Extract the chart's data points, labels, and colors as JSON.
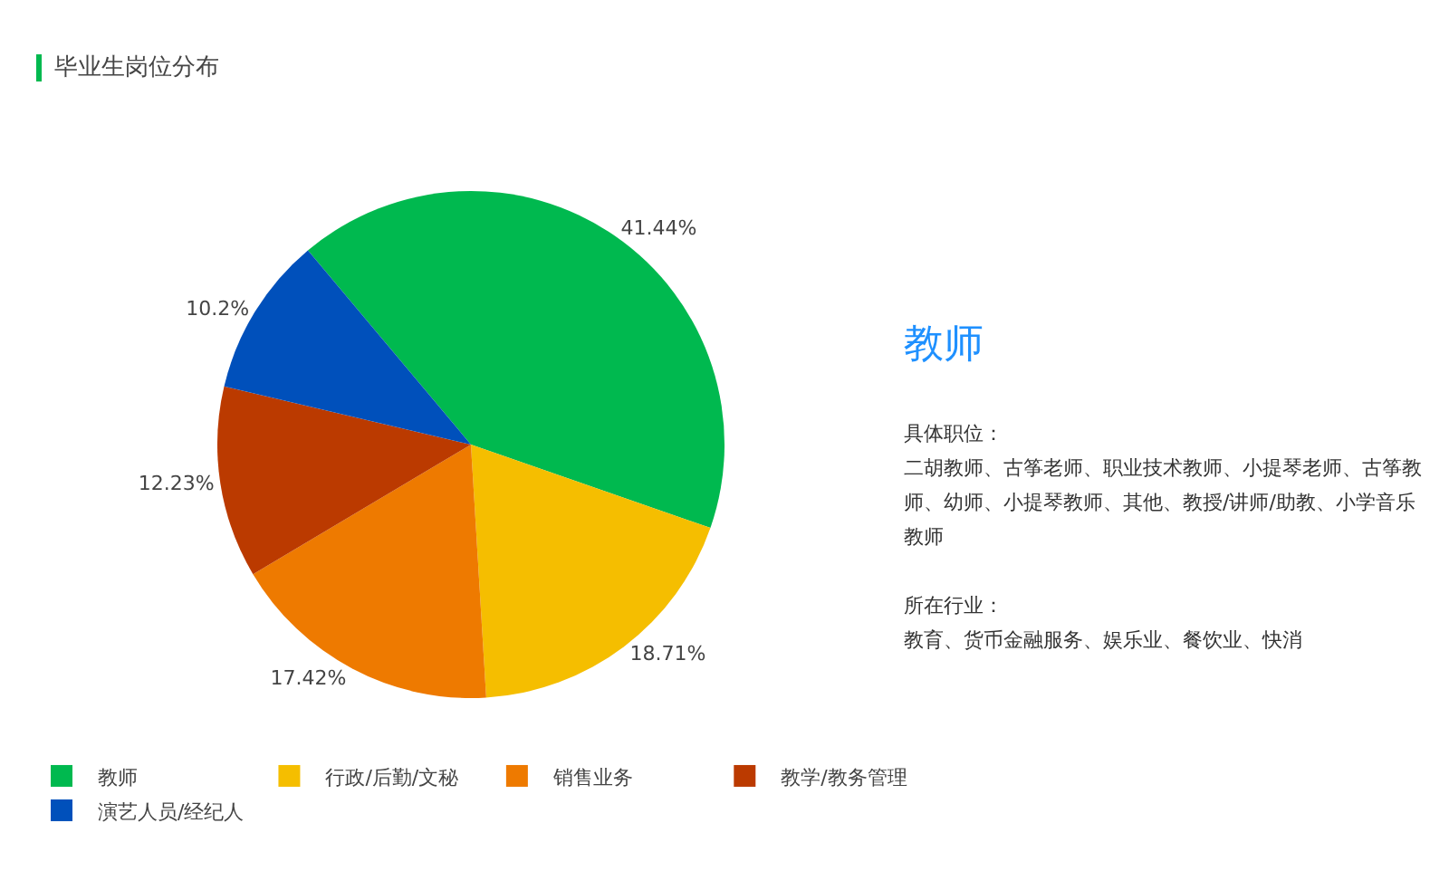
{
  "chart_data": [
    {
      "type": "pie",
      "title": "毕业生岗位分布",
      "categories": [
        "教师",
        "行政/后勤/文秘",
        "销售业务",
        "教学/教务管理",
        "演艺人员/经纪人"
      ],
      "values": [
        41.44,
        18.71,
        17.42,
        12.23,
        10.2
      ],
      "colors": [
        "#00b94f",
        "#f5be00",
        "#ee7a00",
        "#bb3a00",
        "#0050bb"
      ],
      "value_labels": [
        "41.44%",
        "18.71%",
        "17.42%",
        "12.23%",
        "10.2%"
      ],
      "legend": "bottom"
    },
    {
      "type": "other",
      "title": "教师",
      "annotations": [
        "具体职位：",
        "二胡教师、古筝老师、职业技术教师、小提琴老师、古筝教师、幼师、小提琴教师、其他、教授/讲师/助教、小学音乐教师",
        "所在行业：",
        "教育、货币金融服务、娱乐业、餐饮业、快消"
      ]
    }
  ]
}
